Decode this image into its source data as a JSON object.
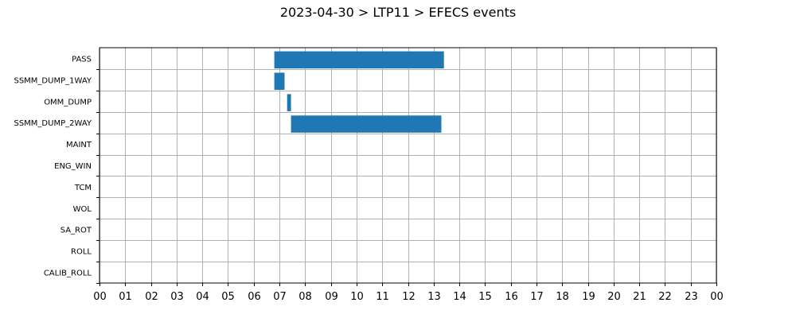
{
  "chart_data": {
    "type": "bar",
    "orientation": "horizontal",
    "title": "2023-04-30 > LTP11 > EFECS events",
    "xlabel": "",
    "ylabel": "",
    "x_unit": "hour of day",
    "xlim": [
      0,
      24
    ],
    "x_tick_labels": [
      "00",
      "01",
      "02",
      "03",
      "04",
      "05",
      "06",
      "07",
      "08",
      "09",
      "10",
      "11",
      "12",
      "13",
      "14",
      "15",
      "16",
      "17",
      "18",
      "19",
      "20",
      "21",
      "22",
      "23",
      "00"
    ],
    "categories": [
      "PASS",
      "SSMM_DUMP_1WAY",
      "OMM_DUMP",
      "SSMM_DUMP_2WAY",
      "MAINT",
      "ENG_WIN",
      "TCM",
      "WOL",
      "SA_ROT",
      "ROLL",
      "CALIB_ROLL"
    ],
    "events": [
      {
        "category": "PASS",
        "start": 6.8,
        "end": 13.4
      },
      {
        "category": "SSMM_DUMP_1WAY",
        "start": 6.8,
        "end": 7.2
      },
      {
        "category": "OMM_DUMP",
        "start": 7.3,
        "end": 7.45
      },
      {
        "category": "SSMM_DUMP_2WAY",
        "start": 7.45,
        "end": 13.3
      }
    ],
    "grid": true,
    "legend": "none",
    "colors": {
      "bar": "#1f77b4",
      "grid": "#b0b0b0",
      "axis": "#000000"
    }
  }
}
